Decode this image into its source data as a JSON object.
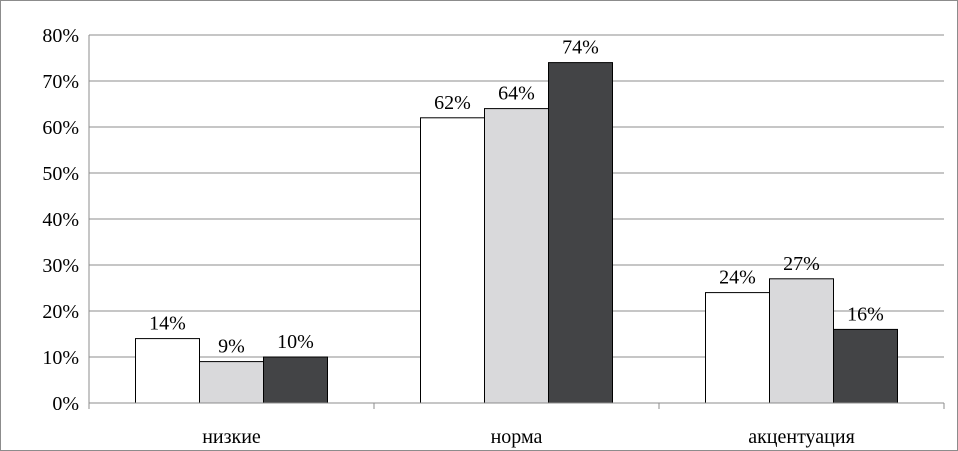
{
  "chart_data": {
    "type": "bar",
    "categories": [
      "низкие",
      "норма",
      "акцентуация"
    ],
    "series": [
      {
        "values": [
          14,
          62,
          24
        ],
        "data_labels": [
          "14%",
          "62%",
          "24%"
        ],
        "color": "#ffffff"
      },
      {
        "values": [
          9,
          64,
          27
        ],
        "data_labels": [
          "9%",
          "64%",
          "27%"
        ],
        "color": "#d9d9db"
      },
      {
        "values": [
          10,
          74,
          16
        ],
        "data_labels": [
          "10%",
          "74%",
          "16%"
        ],
        "color": "#434446"
      }
    ],
    "ylim": [
      0,
      80
    ],
    "yticks": [
      0,
      10,
      20,
      30,
      40,
      50,
      60,
      70,
      80
    ],
    "ytick_labels": [
      "0%",
      "10%",
      "20%",
      "30%",
      "40%",
      "50%",
      "60%",
      "70%",
      "80%"
    ],
    "grid": true,
    "legend": "none",
    "xlabel": "",
    "ylabel": "",
    "title": "",
    "bar_stroke": "#000000",
    "grid_color": "#8c8c8c"
  }
}
